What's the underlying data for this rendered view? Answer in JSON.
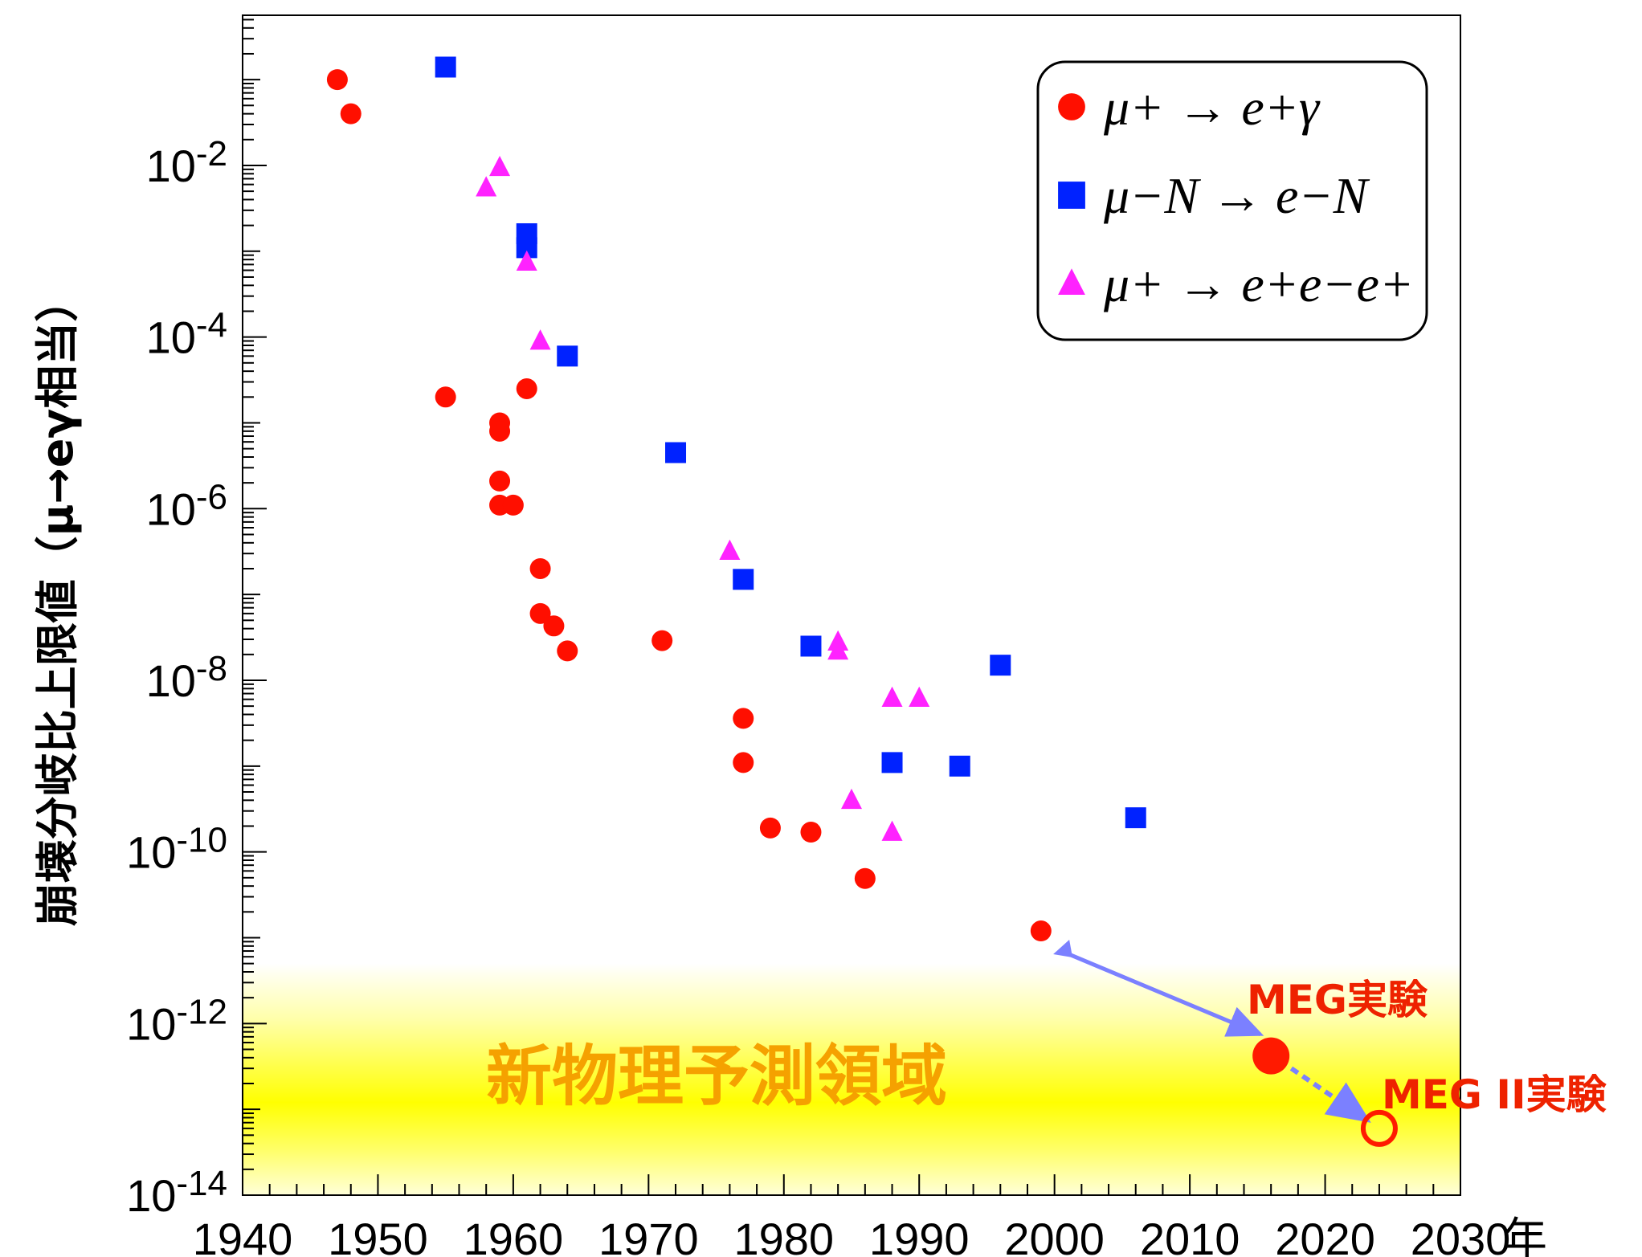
{
  "chart_data": {
    "type": "scatter",
    "title": "",
    "ylabel": "崩壊分岐比上限値（μ→eγ相当）",
    "xlabel": "",
    "x_unit": "年",
    "xlim": [
      1940,
      2030
    ],
    "ylim_log10": [
      -14,
      -0.25
    ],
    "y_scale": "log",
    "x_ticks": [
      1940,
      1950,
      1960,
      1970,
      1980,
      1990,
      2000,
      2010,
      2020,
      2030
    ],
    "y_ticks": [
      {
        "base": "10",
        "exp": "-2",
        "log": -2
      },
      {
        "base": "10",
        "exp": "-4",
        "log": -4
      },
      {
        "base": "10",
        "exp": "-6",
        "log": -6
      },
      {
        "base": "10",
        "exp": "-8",
        "log": -8
      },
      {
        "base": "10",
        "exp": "-10",
        "log": -10
      },
      {
        "base": "10",
        "exp": "-12",
        "log": -12
      },
      {
        "base": "10",
        "exp": "-14",
        "log": -14
      }
    ],
    "legend_position": "top-right",
    "series": [
      {
        "name": "μ+ → e+γ",
        "marker": "circle",
        "color": "#ff0f00",
        "points": [
          [
            1947,
            0.1
          ],
          [
            1948,
            0.04
          ],
          [
            1955,
            2e-05
          ],
          [
            1959,
            1e-05
          ],
          [
            1959,
            8e-06
          ],
          [
            1961,
            2.5e-05
          ],
          [
            1959,
            2.1e-06
          ],
          [
            1959,
            1.1e-06
          ],
          [
            1960,
            1.1e-06
          ],
          [
            1962,
            2e-07
          ],
          [
            1962,
            6e-08
          ],
          [
            1963,
            4.3e-08
          ],
          [
            1964,
            2.2e-08
          ],
          [
            1971,
            2.9e-08
          ],
          [
            1977,
            3.6e-09
          ],
          [
            1977,
            1.1e-09
          ],
          [
            1979,
            1.9e-10
          ],
          [
            1982,
            1.7e-10
          ],
          [
            1986,
            4.9e-11
          ],
          [
            1999,
            1.2e-11
          ]
        ]
      },
      {
        "name": "μ−N → e−N",
        "marker": "square",
        "color": "#0022ff",
        "points": [
          [
            1955,
            0.14
          ],
          [
            1961,
            0.0016
          ],
          [
            1961,
            0.0011
          ],
          [
            1964,
            6e-05
          ],
          [
            1972,
            4.5e-06
          ],
          [
            1977,
            1.5e-07
          ],
          [
            1982,
            2.5e-08
          ],
          [
            1988,
            1.1e-09
          ],
          [
            1993,
            1e-09
          ],
          [
            1996,
            1.5e-08
          ],
          [
            2006,
            2.5e-10
          ]
        ]
      },
      {
        "name": "μ+ → e+e−e+",
        "marker": "triangle",
        "color": "#ff22ff",
        "points": [
          [
            1958,
            0.0055
          ],
          [
            1959,
            0.0095
          ],
          [
            1961,
            0.00075
          ],
          [
            1962,
            9e-05
          ],
          [
            1976,
            3.2e-07
          ],
          [
            1984,
            2.8e-08
          ],
          [
            1984,
            2.2e-08
          ],
          [
            1985,
            4e-10
          ],
          [
            1988,
            6.2e-09
          ],
          [
            1990,
            6.2e-09
          ],
          [
            1988,
            1.7e-10
          ]
        ]
      }
    ],
    "experiments": [
      {
        "label": "MEG実験",
        "x": 2016,
        "y": 4.2e-13,
        "marker": "filled-circle",
        "color": "#ff1a00"
      },
      {
        "label": "MEG II実験",
        "x": 2024,
        "y": 6e-14,
        "marker": "open-circle",
        "color": "#ff1a00"
      }
    ],
    "region": {
      "label": "新物理予測領域",
      "y_from": 1e-14,
      "y_to": 5e-12,
      "color": "#ffff00"
    },
    "arrow_color": "#7b80ff"
  }
}
